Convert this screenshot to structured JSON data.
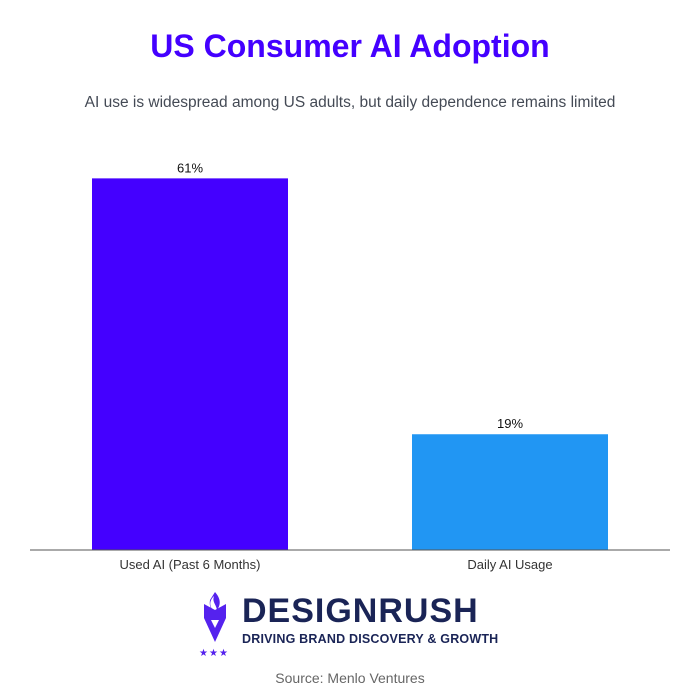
{
  "chart_data": {
    "type": "bar",
    "title": "US Consumer AI Adoption",
    "subtitle": "AI use is widespread among US adults, but daily dependence remains limited",
    "categories": [
      "Used AI (Past 6 Months)",
      "Daily AI Usage"
    ],
    "values": [
      61,
      19
    ],
    "data_labels": [
      "61%",
      "19%"
    ],
    "colors": [
      "#4400ff",
      "#2196f3"
    ],
    "ylim": [
      0,
      65
    ],
    "grid": false,
    "xlabel": "",
    "ylabel": ""
  },
  "brand": {
    "name": "DESIGNRUSH",
    "tagline": "DRIVING BRAND DISCOVERY & GROWTH",
    "logo_color": "#5522ee",
    "text_color": "#1a2456"
  },
  "source": "Source: Menlo Ventures"
}
